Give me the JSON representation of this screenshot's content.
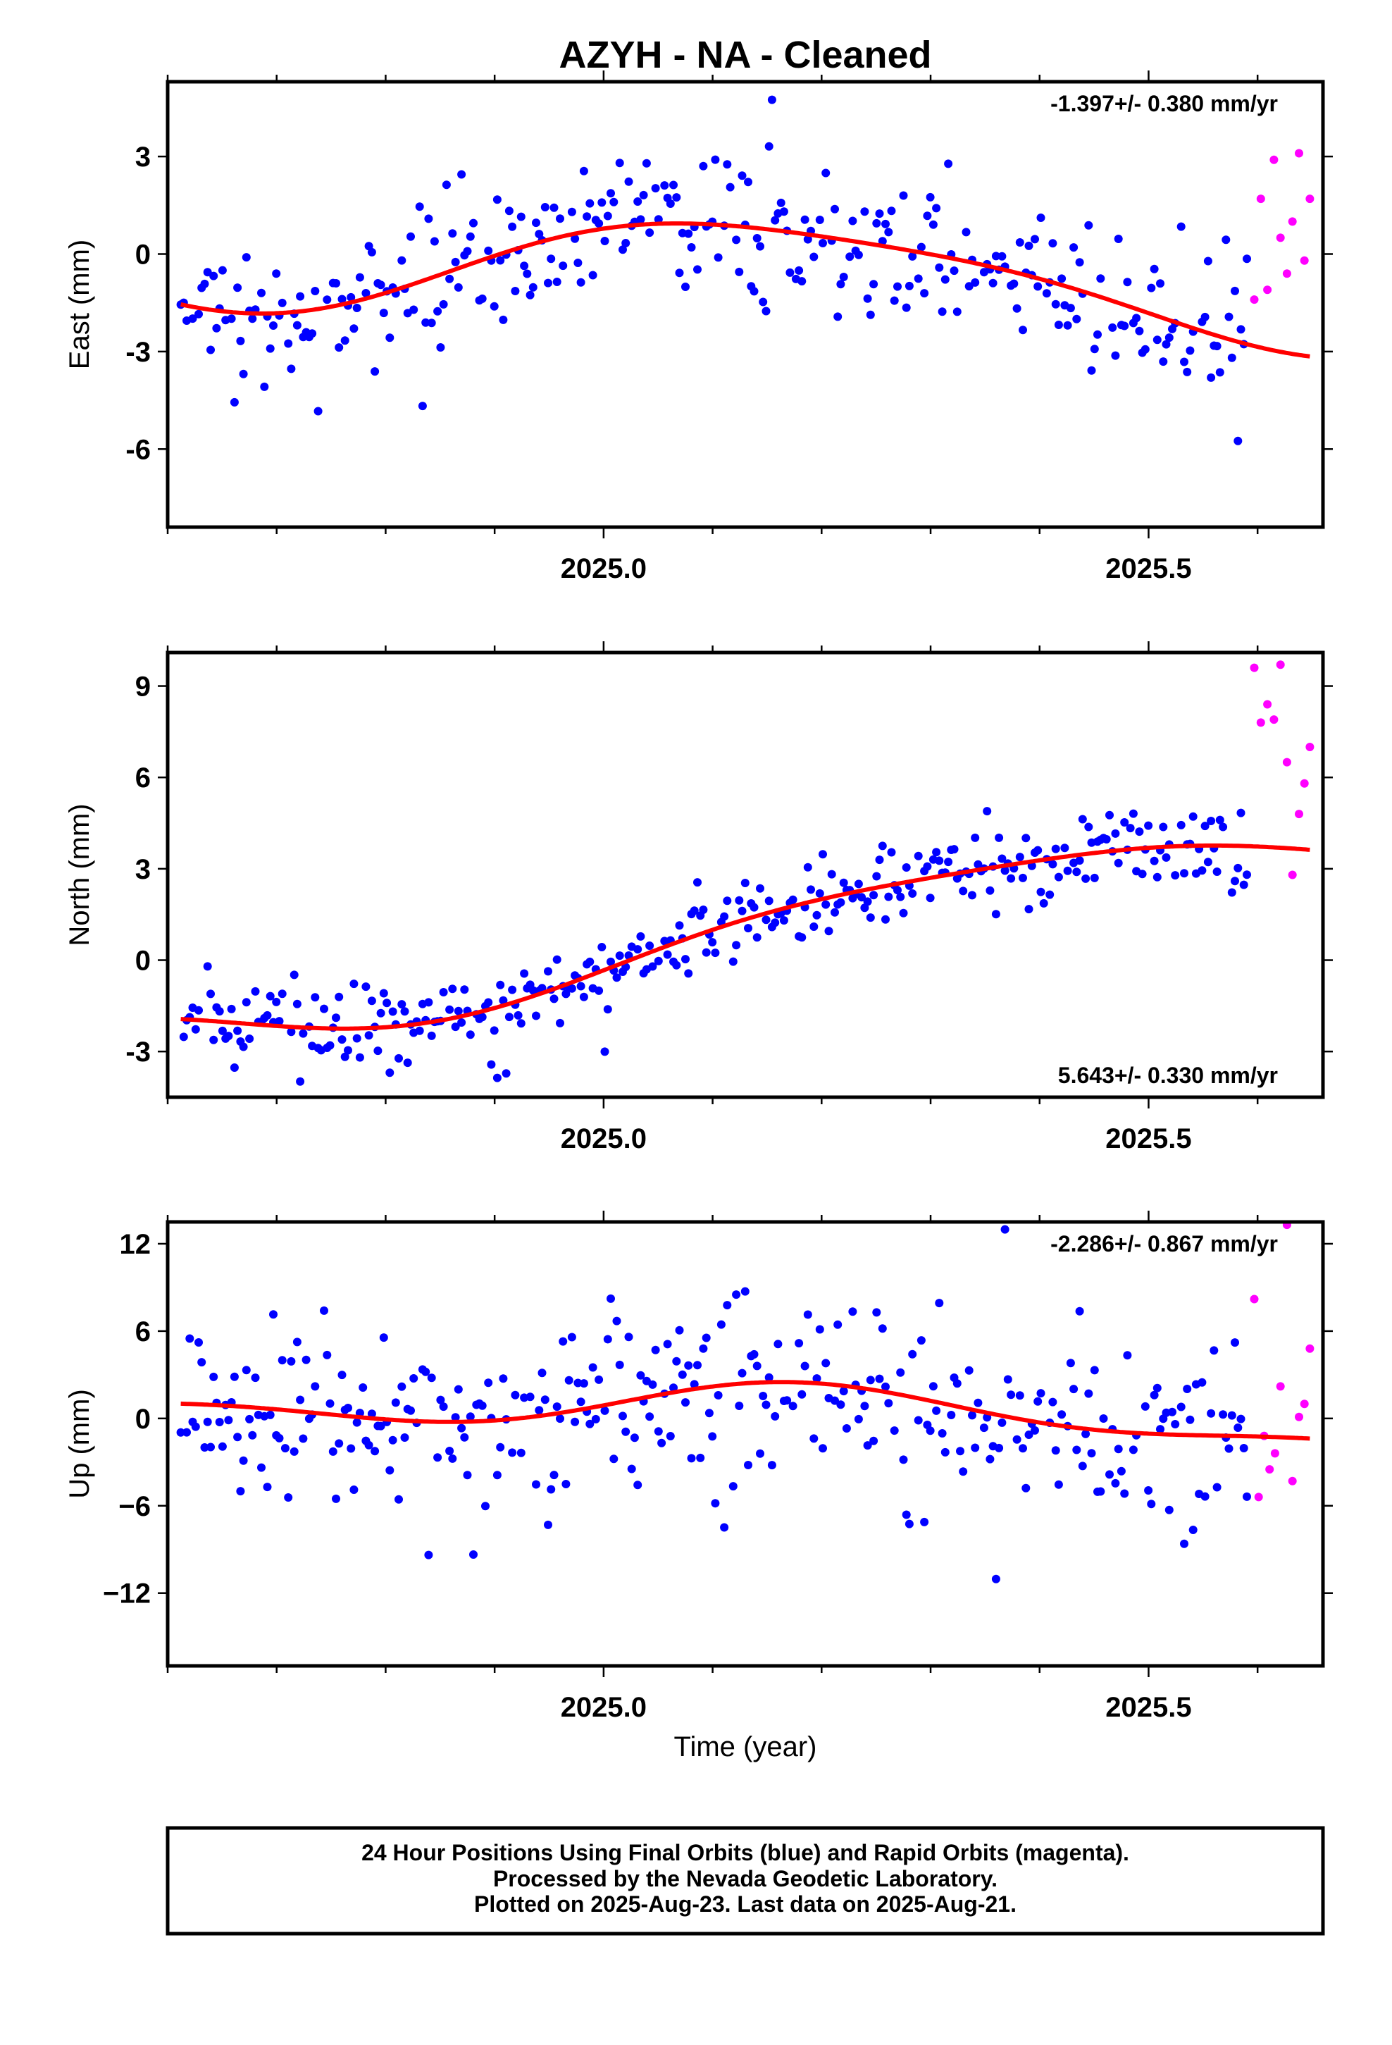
{
  "title": "AZYH  - NA - Cleaned",
  "xlabel": "Time (year)",
  "x_tick_labels": [
    "2025.0",
    "2025.5"
  ],
  "colors": {
    "final": "#0000ff",
    "rapid": "#ff00ff",
    "fit": "#ff0000"
  },
  "footer": {
    "line1": "24 Hour Positions Using Final Orbits (blue) and Rapid Orbits (magenta).",
    "line2": "Processed by the Nevada Geodetic Laboratory.",
    "line3": "Plotted on 2025-Aug-23. Last data on 2025-Aug-21."
  },
  "chart_data": [
    {
      "type": "scatter",
      "component": "East",
      "ylabel": "East (mm)",
      "rate_label": "-1.397+/- 0.380 mm/yr",
      "rate_position": "top-right",
      "xlim": [
        2024.6,
        2025.66
      ],
      "ylim": [
        -8.4,
        5.3
      ],
      "yticks": [
        -6,
        -3,
        0,
        3
      ],
      "ytick_labels": [
        "-6",
        "-3",
        "0",
        "3"
      ],
      "fit": {
        "trend": -1.397,
        "mean": -0.6,
        "annual_sin": 1.3,
        "annual_cos": 0.95,
        "semi_sin": -0.15,
        "semi_cos": 0.25
      },
      "final_noise": 1.1,
      "rapid": {
        "x": [
          2025.597,
          2025.603,
          2025.609,
          2025.615,
          2025.621,
          2025.627,
          2025.632,
          2025.638,
          2025.643,
          2025.648
        ],
        "y": [
          -1.4,
          1.7,
          -1.1,
          2.9,
          0.5,
          -0.6,
          1.0,
          3.1,
          -0.2,
          1.7
        ]
      }
    },
    {
      "type": "scatter",
      "component": "North",
      "ylabel": "North (mm)",
      "rate_label": "5.643+/- 0.330 mm/yr",
      "rate_position": "bottom-right",
      "xlim": [
        2024.6,
        2025.66
      ],
      "ylim": [
        -4.5,
        10.1
      ],
      "yticks": [
        -3,
        0,
        3,
        6,
        9
      ],
      "ytick_labels": [
        "-3",
        "0",
        "3",
        "6",
        "9"
      ],
      "fit": {
        "trend": 5.643,
        "mean": 0.9,
        "annual_sin": 0.9,
        "annual_cos": -0.6,
        "semi_sin": 0.2,
        "semi_cos": 0.1
      },
      "final_noise": 0.7,
      "rapid": {
        "x": [
          2025.597,
          2025.603,
          2025.609,
          2025.615,
          2025.621,
          2025.627,
          2025.632,
          2025.638,
          2025.643,
          2025.648
        ],
        "y": [
          9.6,
          7.8,
          8.4,
          7.9,
          9.7,
          6.5,
          2.8,
          4.8,
          5.8,
          7.0
        ]
      }
    },
    {
      "type": "scatter",
      "component": "Up",
      "ylabel": "Up (mm)",
      "rate_label": "-2.286+/- 0.867 mm/yr",
      "rate_position": "top-right",
      "xlim": [
        2024.6,
        2025.66
      ],
      "ylim": [
        -17,
        13.5
      ],
      "yticks": [
        -12,
        -6,
        0,
        6,
        12
      ],
      "ytick_labels": [
        "−12",
        "−6",
        "0",
        "6",
        "12"
      ],
      "fit": {
        "trend": -2.286,
        "mean": 0.5,
        "annual_sin": 1.4,
        "annual_cos": 0.4,
        "semi_sin": 0.6,
        "semi_cos": -0.3
      },
      "final_noise": 3.2,
      "rapid": {
        "x": [
          2025.597,
          2025.601,
          2025.606,
          2025.611,
          2025.616,
          2025.621,
          2025.627,
          2025.632,
          2025.638,
          2025.643,
          2025.648
        ],
        "y": [
          8.2,
          -5.4,
          -1.2,
          -3.5,
          -2.4,
          2.2,
          13.3,
          -4.3,
          0.1,
          1.0,
          4.8
        ]
      }
    }
  ]
}
